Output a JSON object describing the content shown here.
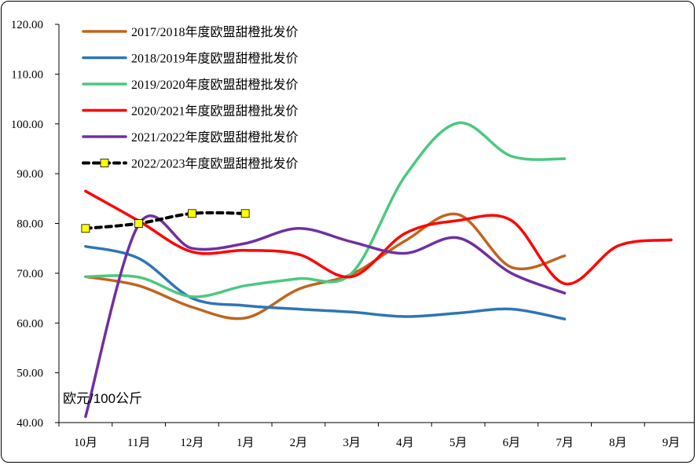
{
  "chart_data": {
    "type": "line",
    "title": "",
    "xlabel": "",
    "ylabel": "欧元/100公斤",
    "categories": [
      "10月",
      "11月",
      "12月",
      "1月",
      "2月",
      "3月",
      "4月",
      "5月",
      "6月",
      "7月",
      "8月",
      "9月"
    ],
    "yticks": [
      "40.00",
      "50.00",
      "60.00",
      "70.00",
      "80.00",
      "90.00",
      "100.00",
      "110.00",
      "120.00"
    ],
    "ylim": [
      40,
      120
    ],
    "grid": false,
    "legend_position": "top-left",
    "series": [
      {
        "name": "2017/2018年度欧盟甜橙批发价",
        "color": "#C0651E",
        "dashed": false,
        "markers": false,
        "values": [
          69.3,
          67.5,
          63.2,
          61.0,
          66.8,
          69.8,
          76.5,
          81.8,
          71.2,
          73.5,
          null,
          null
        ]
      },
      {
        "name": "2018/2019年度欧盟甜橙批发价",
        "color": "#2E75B6",
        "dashed": false,
        "markers": false,
        "values": [
          75.4,
          73.0,
          65.0,
          63.5,
          62.8,
          62.2,
          61.3,
          62.0,
          62.8,
          60.8,
          null,
          null
        ]
      },
      {
        "name": "2019/2020年度欧盟甜橙批发价",
        "color": "#4CC880",
        "dashed": false,
        "markers": false,
        "values": [
          69.3,
          69.2,
          65.3,
          67.5,
          68.9,
          70.0,
          89.5,
          100.2,
          93.5,
          93.0,
          null,
          null
        ]
      },
      {
        "name": "2020/2021年度欧盟甜橙批发价",
        "color": "#FF0000",
        "dashed": false,
        "markers": false,
        "values": [
          86.5,
          80.5,
          74.3,
          74.6,
          73.8,
          69.3,
          78.0,
          80.6,
          80.6,
          67.9,
          75.5,
          76.7
        ]
      },
      {
        "name": "2021/2022年度欧盟甜橙批发价",
        "color": "#7030A0",
        "dashed": false,
        "markers": false,
        "values": [
          41.2,
          79.8,
          75.0,
          76.0,
          79.0,
          76.3,
          74.0,
          77.1,
          70.0,
          66.0,
          null,
          null
        ]
      },
      {
        "name": "2022/2023年度欧盟甜橙批发价",
        "color": "#000000",
        "dashed": true,
        "markers": true,
        "marker_color": "#FFFF00",
        "values": [
          79.0,
          80.0,
          82.0,
          82.0,
          null,
          null,
          null,
          null,
          null,
          null,
          null,
          null
        ]
      }
    ]
  }
}
